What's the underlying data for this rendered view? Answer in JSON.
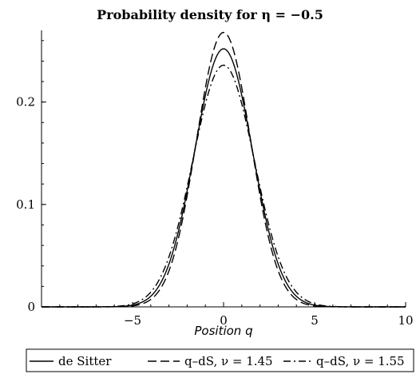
{
  "chart_data": {
    "type": "line",
    "title": "Probability density for η = −0.5",
    "xlabel": "Position q",
    "ylabel": "",
    "xlim": [
      -10,
      10
    ],
    "ylim": [
      0,
      0.27
    ],
    "x_ticks": [
      -5,
      0,
      5,
      10
    ],
    "x_tick_labels": [
      "−5",
      "0",
      "5",
      "10"
    ],
    "y_ticks": [
      0,
      0.1,
      0.2
    ],
    "y_tick_labels": [
      "0",
      "0.1",
      "0.2"
    ],
    "grid": false,
    "legend_position": "bottom",
    "series": [
      {
        "name": "de Sitter",
        "dash": "solid",
        "color": "#000000",
        "peak": 0.252,
        "x": [
          -10,
          -8,
          -6,
          -5,
          -4,
          -3,
          -2,
          -1.5,
          -1,
          -0.5,
          0,
          0.5,
          1,
          1.5,
          2,
          3,
          4,
          5,
          6,
          8,
          10
        ],
        "y": [
          0.0,
          0.0,
          0.0002,
          0.0013,
          0.0069,
          0.0279,
          0.0855,
          0.1326,
          0.1865,
          0.2311,
          0.252,
          0.2311,
          0.1865,
          0.1326,
          0.0855,
          0.0279,
          0.0069,
          0.0013,
          0.0002,
          0.0,
          0.0
        ]
      },
      {
        "name": "q–dS, ν = 1.45",
        "dash": "dashed",
        "color": "#000000",
        "peak": 0.268,
        "x": [
          -10,
          -8,
          -6,
          -5,
          -4,
          -3,
          -2,
          -1.5,
          -1,
          -0.5,
          0,
          0.5,
          1,
          1.5,
          2,
          3,
          4,
          5,
          6,
          8,
          10
        ],
        "y": [
          0.0,
          0.0,
          0.0001,
          0.0008,
          0.005,
          0.0239,
          0.0834,
          0.1355,
          0.1956,
          0.2446,
          0.268,
          0.2446,
          0.1956,
          0.1355,
          0.0834,
          0.0239,
          0.005,
          0.0008,
          0.0001,
          0.0,
          0.0
        ]
      },
      {
        "name": "q–dS, ν = 1.55",
        "dash": "dashdot",
        "color": "#000000",
        "peak": 0.236,
        "x": [
          -10,
          -8,
          -6,
          -5,
          -4,
          -3,
          -2,
          -1.5,
          -1,
          -0.5,
          0,
          0.5,
          1,
          1.5,
          2,
          3,
          4,
          5,
          6,
          8,
          10
        ],
        "y": [
          0.0,
          0.0,
          0.0004,
          0.0021,
          0.0093,
          0.0322,
          0.0868,
          0.1287,
          0.1755,
          0.2161,
          0.236,
          0.2161,
          0.1755,
          0.1287,
          0.0868,
          0.0322,
          0.0093,
          0.0021,
          0.0004,
          0.0,
          0.0
        ]
      }
    ]
  }
}
